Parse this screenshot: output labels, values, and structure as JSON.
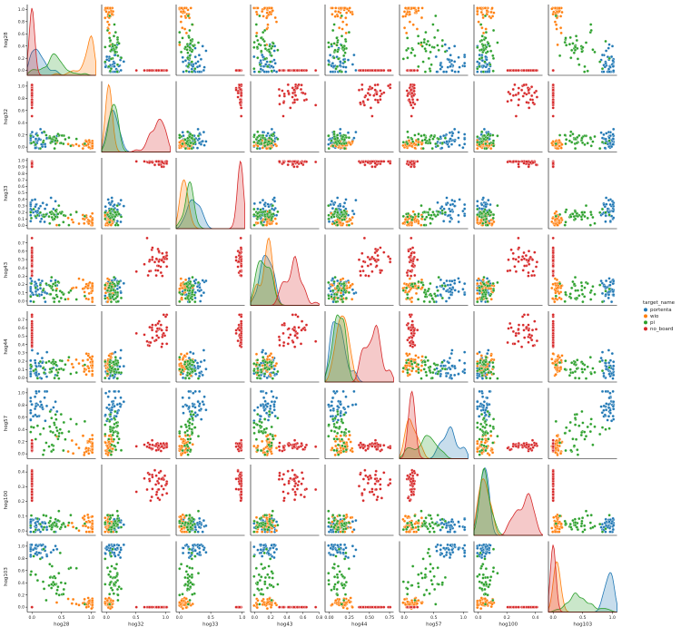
{
  "chart_data": {
    "type": "scatter",
    "variables": [
      "hog28",
      "hog32",
      "hog33",
      "hog43",
      "hog44",
      "hog57",
      "hog100",
      "hog103"
    ],
    "axis_labels": [
      "hog28",
      "hog32",
      "hog33",
      "hog43",
      "hog44",
      "hog57",
      "hog100",
      "hog103"
    ],
    "ticks": {
      "hog28": [
        0.0,
        0.5,
        1.0
      ],
      "hog32": [
        0.0,
        0.5,
        1.0
      ],
      "hog33": [
        0.0,
        0.5,
        1.0
      ],
      "hog43": [
        0.0,
        0.2,
        0.4,
        0.6,
        0.8
      ],
      "hog44": [
        0.0,
        0.25,
        0.5,
        0.75
      ],
      "hog57": [
        0.0,
        0.5,
        1.0
      ],
      "hog100": [
        0.0,
        0.2,
        0.4
      ],
      "hog103": [
        0.0,
        0.5,
        1.0
      ]
    },
    "ytick_labels": {
      "hog28": [
        "0.0",
        "0.2",
        "0.4",
        "0.6",
        "0.8",
        "1.0"
      ],
      "hog32": [
        "0.0",
        "0.2",
        "0.4",
        "0.6",
        "0.8",
        "1.0"
      ],
      "hog33": [
        "0.0",
        "0.1",
        "0.2",
        "0.3",
        "0.4",
        "0.5",
        "0.6",
        "0.7",
        "0.8",
        "0.9",
        "1.0"
      ],
      "hog43": [
        "0.0",
        "0.1",
        "0.2",
        "0.3",
        "0.4",
        "0.5",
        "0.6",
        "0.7"
      ],
      "hog44": [
        "0.0",
        "0.1",
        "0.2",
        "0.3",
        "0.4",
        "0.5",
        "0.6",
        "0.7"
      ],
      "hog57": [
        "0.0",
        "0.2",
        "0.4",
        "0.6",
        "0.8",
        "1.0"
      ],
      "hog100": [
        "0.0",
        "0.1",
        "0.2",
        "0.3",
        "0.4"
      ],
      "hog103": [
        "0.0",
        "0.2",
        "0.4",
        "0.6",
        "0.8",
        "1.0"
      ]
    },
    "xtick_labels": {
      "hog28": [
        "0.0",
        "0.5",
        "1.0"
      ],
      "hog32": [
        "0.0",
        "0.5",
        "1.0"
      ],
      "hog33": [
        "0.0",
        "0.5",
        "1.0"
      ],
      "hog43": [
        "0.0",
        "0.2",
        "0.4",
        "0.6",
        "0.8"
      ],
      "hog44": [
        "0.00",
        "0.25",
        "0.50",
        "0.75"
      ],
      "hog57": [
        "0.0",
        "0.5",
        "1.0"
      ],
      "hog100": [
        "0.0",
        "0.2",
        "0.4"
      ],
      "hog103": [
        "0.0",
        "0.5",
        "1.0"
      ]
    },
    "ranges": {
      "hog28": [
        -0.08,
        1.08
      ],
      "hog32": [
        -0.08,
        1.08
      ],
      "hog33": [
        -0.05,
        1.04
      ],
      "hog43": [
        -0.05,
        0.8
      ],
      "hog44": [
        -0.05,
        0.8
      ],
      "hog57": [
        -0.08,
        1.08
      ],
      "hog100": [
        -0.03,
        0.45
      ],
      "hog103": [
        -0.08,
        1.08
      ]
    },
    "diagonal": "kde",
    "legend": {
      "title": "target_name",
      "position": "center-right",
      "entries": [
        "portenta",
        "wio",
        "pi",
        "no_board"
      ]
    },
    "classes": [
      "portenta",
      "wio",
      "pi",
      "no_board"
    ],
    "colors": {
      "portenta": "#1f77b4",
      "wio": "#ff7f0e",
      "pi": "#2ca02c",
      "no_board": "#d62728"
    },
    "class_profiles": {
      "portenta": {
        "hog28": [
          0.05,
          0.08,
          0.25
        ],
        "hog32": [
          0.12,
          0.08
        ],
        "hog33": [
          0.25,
          0.12
        ],
        "hog43": [
          0.14,
          0.07
        ],
        "hog44": [
          0.12,
          0.08
        ],
        "hog57": [
          0.8,
          0.15
        ],
        "hog100": [
          0.04,
          0.03
        ],
        "hog103": [
          0.95,
          0.08
        ]
      },
      "wio": {
        "hog28": [
          0.92,
          0.1,
          0.15
        ],
        "hog32": [
          0.04,
          0.03
        ],
        "hog33": [
          0.08,
          0.05
        ],
        "hog43": [
          0.15,
          0.06
        ],
        "hog44": [
          0.15,
          0.06
        ],
        "hog57": [
          0.12,
          0.08
        ],
        "hog100": [
          0.04,
          0.03
        ],
        "hog103": [
          0.06,
          0.04
        ]
      },
      "pi": {
        "hog28": [
          0.3,
          0.25,
          0.15
        ],
        "hog32": [
          0.1,
          0.06
        ],
        "hog33": [
          0.15,
          0.1
        ],
        "hog43": [
          0.12,
          0.07
        ],
        "hog44": [
          0.1,
          0.07
        ],
        "hog57": [
          0.4,
          0.25
        ],
        "hog100": [
          0.05,
          0.04
        ],
        "hog103": [
          0.5,
          0.25
        ]
      },
      "no_board": {
        "hog28": [
          0.0,
          0.0,
          0.0
        ],
        "hog32": [
          0.85,
          0.12
        ],
        "hog33": [
          0.98,
          0.04
        ],
        "hog43": [
          0.48,
          0.1
        ],
        "hog44": [
          0.55,
          0.1
        ],
        "hog57": [
          0.12,
          0.04
        ],
        "hog100": [
          0.3,
          0.07
        ],
        "hog103": [
          0.0,
          0.0
        ]
      }
    },
    "points_per_class": 40
  }
}
